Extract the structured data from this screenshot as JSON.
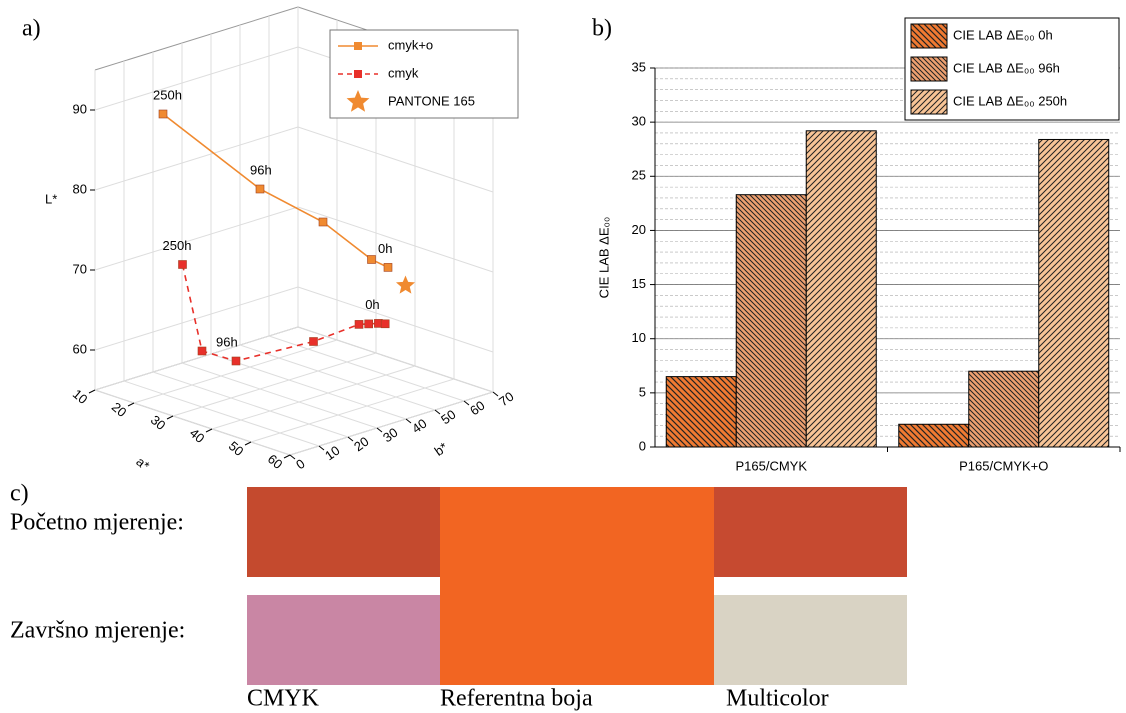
{
  "panel_labels": [
    "a)",
    "b)",
    "c)"
  ],
  "chart_data": [
    {
      "type": "scatter3d",
      "xlabel": "a*",
      "ylabel": "b*",
      "zlabel": "L*",
      "xlim": [
        10,
        60
      ],
      "xticks": [
        10,
        20,
        30,
        40,
        50,
        60
      ],
      "ylim": [
        0,
        70
      ],
      "yticks": [
        0,
        10,
        20,
        30,
        40,
        50,
        60,
        70
      ],
      "zlim": [
        55,
        95
      ],
      "zticks": [
        60,
        70,
        80,
        90
      ],
      "grid": true,
      "legend": "top-right",
      "series": [
        {
          "name": "cmyk+o",
          "color": "#f08a30",
          "line": "solid",
          "marker": "square",
          "x": [
            20,
            30,
            35,
            40,
            42
          ],
          "y": [
            10,
            30,
            45,
            55,
            58
          ],
          "z": [
            90,
            80,
            75,
            70,
            69
          ],
          "point_labels": [
            "250h",
            "96h",
            null,
            null,
            "0h"
          ]
        },
        {
          "name": "cmyk",
          "color": "#e8302a",
          "line": "dashed",
          "marker": "square",
          "x": [
            25,
            30,
            35,
            40,
            42,
            43,
            44,
            45
          ],
          "y": [
            10,
            10,
            15,
            35,
            48,
            50,
            52,
            53
          ],
          "z": [
            72,
            62,
            61,
            62,
            63,
            63,
            63,
            63
          ],
          "point_labels": [
            "250h",
            null,
            "96h",
            null,
            null,
            null,
            null,
            "0h"
          ]
        },
        {
          "name": "PANTONE 165",
          "color": "#f08a30",
          "line": "none",
          "marker": "star",
          "x": [
            45
          ],
          "y": [
            60
          ],
          "z": [
            67
          ],
          "point_labels": [
            null
          ]
        }
      ]
    },
    {
      "type": "bar",
      "ylabel": "CIE LAB ΔE₀₀",
      "categories": [
        "P165/CMYK",
        "P165/CMYK+O"
      ],
      "ylim": [
        0,
        35
      ],
      "yticks": [
        0,
        5,
        10,
        15,
        20,
        25,
        30,
        35
      ],
      "grid": true,
      "minor_grid_step": 1,
      "legend": "top-right",
      "series": [
        {
          "name": "CIE LAB ΔE₀₀ 0h",
          "color": "#f07a32",
          "hatch": "back",
          "values": [
            6.5,
            2.1
          ]
        },
        {
          "name": "CIE LAB ΔE₀₀ 96h",
          "color": "#eea070",
          "hatch": "back-fine",
          "values": [
            23.3,
            7.0
          ]
        },
        {
          "name": "CIE LAB ΔE₀₀ 250h",
          "color": "#f8c496",
          "hatch": "forward",
          "values": [
            29.2,
            28.4
          ]
        }
      ]
    }
  ],
  "swatch_panel": {
    "rows": [
      "Početno mjerenje:",
      "Završno mjerenje:"
    ],
    "samples": [
      {
        "name": "CMYK",
        "colors": [
          "#c44a2e",
          "#c986a4"
        ]
      },
      {
        "name": "Referentna boja",
        "colors": [
          "#f26522"
        ]
      },
      {
        "name": "Multicolor",
        "colors": [
          "#c64a30",
          "#d9d3c4"
        ]
      }
    ]
  }
}
